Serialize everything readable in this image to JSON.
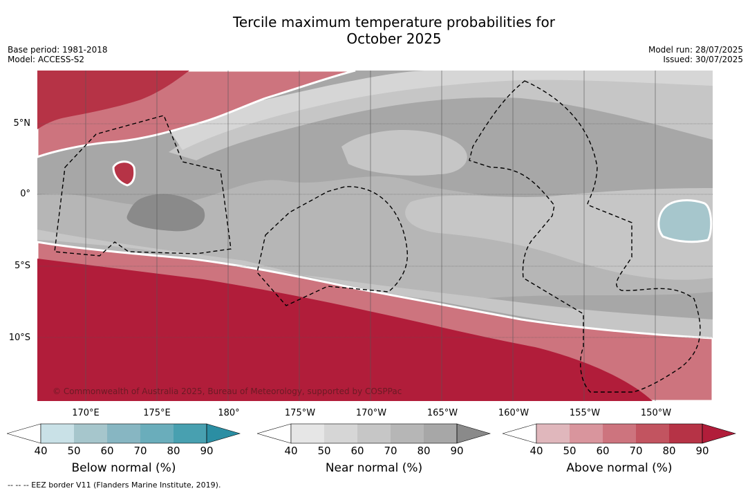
{
  "title_line1": "Tercile maximum temperature probabilities for",
  "title_line2": "October 2025",
  "meta_left": {
    "base_period": "Base period: 1981-2018",
    "model": "Model: ACCESS-S2"
  },
  "meta_right": {
    "model_run": "Model run: 28/07/2025",
    "issued": "Issued: 30/07/2025"
  },
  "map": {
    "lat_labels": [
      "5°N",
      "0°",
      "5°S",
      "10°S"
    ],
    "lon_labels": [
      "170°E",
      "175°E",
      "180°",
      "175°W",
      "170°W",
      "165°W",
      "160°W",
      "155°W",
      "150°W"
    ],
    "copyright": "© Commonwealth of Australia 2025, Bureau of Meteorology, supported by COSPPac"
  },
  "colors": {
    "below": [
      "#c9e1e7",
      "#a6c6cc",
      "#87b6c2",
      "#6aadbb",
      "#48a0b0",
      "#2b8ea3"
    ],
    "near": [
      "#e6e6e6",
      "#d6d6d6",
      "#c6c6c6",
      "#b6b6b6",
      "#a7a7a7",
      "#8a8a8a"
    ],
    "above": [
      "#e0b7bc",
      "#d9959d",
      "#cd747e",
      "#c25460",
      "#b63346",
      "#b11d3a"
    ]
  },
  "colorbars": [
    {
      "title": "Below normal (%)",
      "ticks": [
        "40",
        "50",
        "60",
        "70",
        "80",
        "90"
      ]
    },
    {
      "title": "Near normal (%)",
      "ticks": [
        "40",
        "50",
        "60",
        "70",
        "80",
        "90"
      ]
    },
    {
      "title": "Above normal (%)",
      "ticks": [
        "40",
        "50",
        "60",
        "70",
        "80",
        "90"
      ]
    }
  ],
  "footnote": "--  --  -- EEZ border V11 (Flanders Marine Institute, 2019)."
}
